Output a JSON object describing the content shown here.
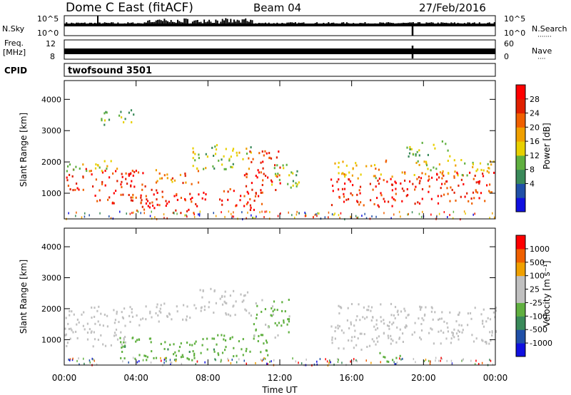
{
  "header": {
    "title": "Dome C East (fitACF)",
    "beam": "Beam 04",
    "date": "27/Feb/2016"
  },
  "labels": {
    "nsky": "N.Sky",
    "nsearch": "N.Search",
    "nsearch_dots": "·······",
    "freq_line1": "Freq.",
    "freq_line2": "[MHz]",
    "nave": "Nave",
    "nave_dots": "····",
    "cpid": "CPID",
    "cpid_value": "twofsound 3501"
  },
  "noise_panel": {
    "left_ticks": [
      "10^5",
      "10^0"
    ],
    "right_ticks": [
      "10^5",
      "10^0"
    ]
  },
  "freq_panel": {
    "left_ticks": [
      "12",
      "8"
    ],
    "right_ticks": [
      "60",
      "0"
    ]
  },
  "x_axis": {
    "label": "Time UT",
    "ticks": [
      "00:00",
      "04:00",
      "08:00",
      "12:00",
      "16:00",
      "20:00",
      "00:00"
    ],
    "range_hours": [
      0,
      24
    ]
  },
  "colors": {
    "power": [
      "#1010e0",
      "#2050a8",
      "#3a8a5a",
      "#60b040",
      "#e8d000",
      "#f0a000",
      "#f06000",
      "#e02000",
      "#ff0000"
    ],
    "velocity": [
      "#1010e0",
      "#2050a8",
      "#3a8a5a",
      "#60b040",
      "#c0c0c0",
      "#c0c0c0",
      "#f0a000",
      "#f06000",
      "#ff0000"
    ]
  },
  "chart_data": [
    {
      "type": "heatmap",
      "name": "power",
      "ylabel": "Slant Range [km]",
      "yticks": [
        1000,
        2000,
        3000,
        4000
      ],
      "ylim": [
        180,
        4600
      ],
      "xlim": [
        0,
        24
      ],
      "colorbar_label": "Power [dB]",
      "colorbar_ticks": [
        "28",
        "24",
        "20",
        "16",
        "12",
        "8",
        "4"
      ],
      "colorbar_range": [
        0,
        32
      ],
      "patches": [
        {
          "t0": 0.0,
          "t1": 4.5,
          "r0": 1100,
          "r1": 1850,
          "level": 27
        },
        {
          "t0": 0.0,
          "t1": 3.0,
          "r0": 1700,
          "r1": 2100,
          "level": 15
        },
        {
          "t0": 1.5,
          "t1": 5.5,
          "r0": 700,
          "r1": 1150,
          "level": 26
        },
        {
          "t0": 4.0,
          "t1": 8.0,
          "r0": 400,
          "r1": 1050,
          "level": 28
        },
        {
          "t0": 5.0,
          "t1": 7.5,
          "r0": 1300,
          "r1": 1800,
          "level": 22
        },
        {
          "t0": 7.0,
          "t1": 10.5,
          "r0": 1800,
          "r1": 2600,
          "level": 14
        },
        {
          "t0": 8.5,
          "t1": 11.0,
          "r0": 500,
          "r1": 1200,
          "level": 27
        },
        {
          "t0": 10.0,
          "t1": 12.0,
          "r0": 1000,
          "r1": 2400,
          "level": 26
        },
        {
          "t0": 11.5,
          "t1": 13.2,
          "r0": 1200,
          "r1": 2000,
          "level": 12
        },
        {
          "t0": 14.8,
          "t1": 18.5,
          "r0": 600,
          "r1": 1500,
          "level": 28
        },
        {
          "t0": 15.0,
          "t1": 18.0,
          "r0": 1500,
          "r1": 2100,
          "level": 18
        },
        {
          "t0": 18.0,
          "t1": 24.0,
          "r0": 700,
          "r1": 1700,
          "level": 26
        },
        {
          "t0": 18.5,
          "t1": 24.0,
          "r0": 1600,
          "r1": 2100,
          "level": 16
        },
        {
          "t0": 19.0,
          "t1": 21.5,
          "r0": 2200,
          "r1": 2700,
          "level": 12
        },
        {
          "t0": 2.0,
          "t1": 4.0,
          "r0": 3200,
          "r1": 3700,
          "level": 12
        }
      ]
    },
    {
      "type": "heatmap",
      "name": "velocity",
      "ylabel": "Slant Range [km]",
      "yticks": [
        1000,
        2000,
        3000,
        4000
      ],
      "ylim": [
        180,
        4600
      ],
      "xlim": [
        0,
        24
      ],
      "colorbar_label": "Velocity [m s⁻¹]",
      "colorbar_ticks": [
        "1000",
        "500",
        "100",
        "25",
        "-25",
        "-100",
        "-500",
        "-1000"
      ],
      "colorbar_range": [
        -1200,
        1200
      ],
      "patches": [
        {
          "t0": 0.0,
          "t1": 4.5,
          "r0": 1500,
          "r1": 2100,
          "level": 0
        },
        {
          "t0": 0.0,
          "t1": 3.5,
          "r0": 800,
          "r1": 1500,
          "level": 150
        },
        {
          "t0": 3.0,
          "t1": 8.5,
          "r0": 350,
          "r1": 1100,
          "level": -300
        },
        {
          "t0": 4.5,
          "t1": 7.5,
          "r0": 1600,
          "r1": 2200,
          "level": 0
        },
        {
          "t0": 7.5,
          "t1": 10.5,
          "r0": 1800,
          "r1": 2700,
          "level": 0
        },
        {
          "t0": 8.5,
          "t1": 11.5,
          "r0": 500,
          "r1": 1200,
          "level": -250
        },
        {
          "t0": 10.5,
          "t1": 12.5,
          "r0": 1100,
          "r1": 2400,
          "level": -200
        },
        {
          "t0": 14.8,
          "t1": 18.5,
          "r0": 700,
          "r1": 1500,
          "level": 120
        },
        {
          "t0": 15.0,
          "t1": 18.5,
          "r0": 1500,
          "r1": 2200,
          "level": 0
        },
        {
          "t0": 18.0,
          "t1": 24.0,
          "r0": 900,
          "r1": 1500,
          "level": 180
        },
        {
          "t0": 18.5,
          "t1": 24.0,
          "r0": 1500,
          "r1": 2100,
          "level": 0
        },
        {
          "t0": 17.5,
          "t1": 19.0,
          "r0": 300,
          "r1": 600,
          "level": -300
        }
      ]
    }
  ]
}
